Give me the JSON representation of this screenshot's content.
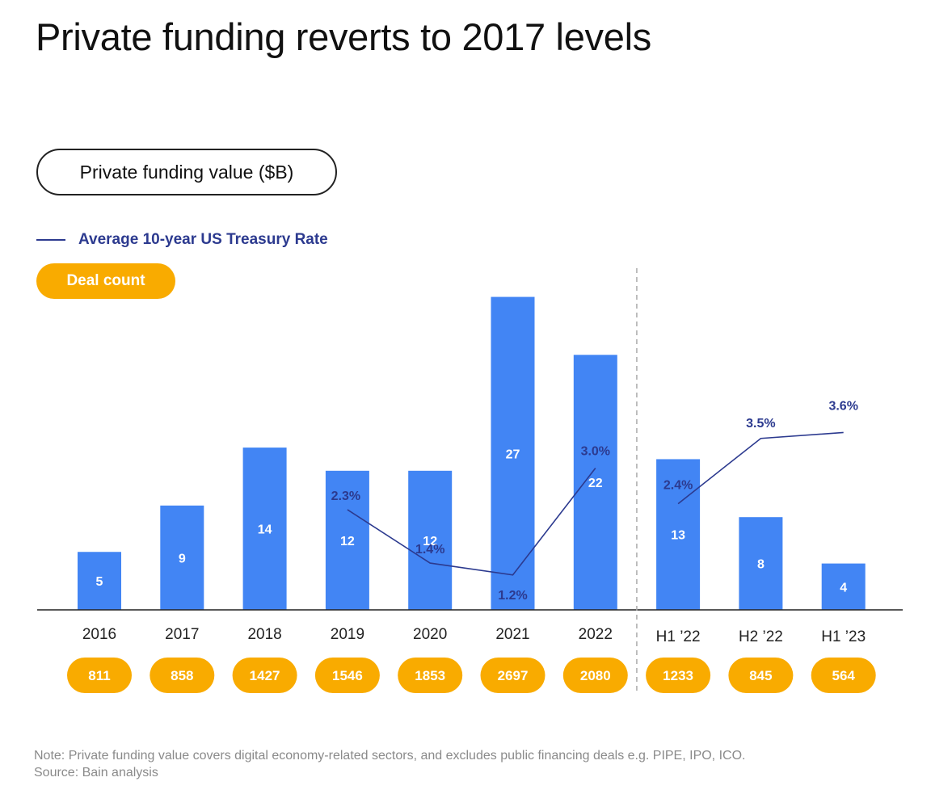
{
  "title": "Private funding reverts to 2017 levels",
  "pill_value_label": "Private funding value ($B)",
  "legend_line_label": "Average 10-year US Treasury Rate",
  "pill_deal_label": "Deal count",
  "colors": {
    "bar": "#4285f4",
    "line": "#2c3a8f",
    "deal": "#f9ab00"
  },
  "chart_data": {
    "type": "bar",
    "categories": [
      "2016",
      "2017",
      "2018",
      "2019",
      "2020",
      "2021",
      "2022",
      "H1 ’22",
      "H2 ’22",
      "H1 ’23"
    ],
    "series": [
      {
        "name": "Private funding value ($B)",
        "values": [
          5,
          9,
          14,
          12,
          12,
          27,
          22,
          13,
          8,
          4
        ]
      },
      {
        "name": "Average 10-year US Treasury Rate",
        "type": "line",
        "points": [
          {
            "category": "2019",
            "value": 2.3,
            "label": "2.3%"
          },
          {
            "category": "2020",
            "value": 1.4,
            "label": "1.4%"
          },
          {
            "category": "2021",
            "value": 1.2,
            "label": "1.2%"
          },
          {
            "category": "2022",
            "value": 3.0,
            "label": "3.0%"
          },
          {
            "category": "H1 ’22",
            "value": 2.4,
            "label": "2.4%"
          },
          {
            "category": "H2 ’22",
            "value": 3.5,
            "label": "3.5%"
          },
          {
            "category": "H1 ’23",
            "value": 3.6,
            "label": "3.6%"
          }
        ]
      },
      {
        "name": "Deal count",
        "values": [
          811,
          858,
          1427,
          1546,
          1853,
          2697,
          2080,
          1233,
          845,
          564
        ]
      }
    ],
    "divider_after": "2022"
  },
  "note": "Note: Private funding value covers digital economy-related sectors, and excludes public financing deals e.g. PIPE, IPO, ICO.",
  "source": "Source: Bain analysis"
}
